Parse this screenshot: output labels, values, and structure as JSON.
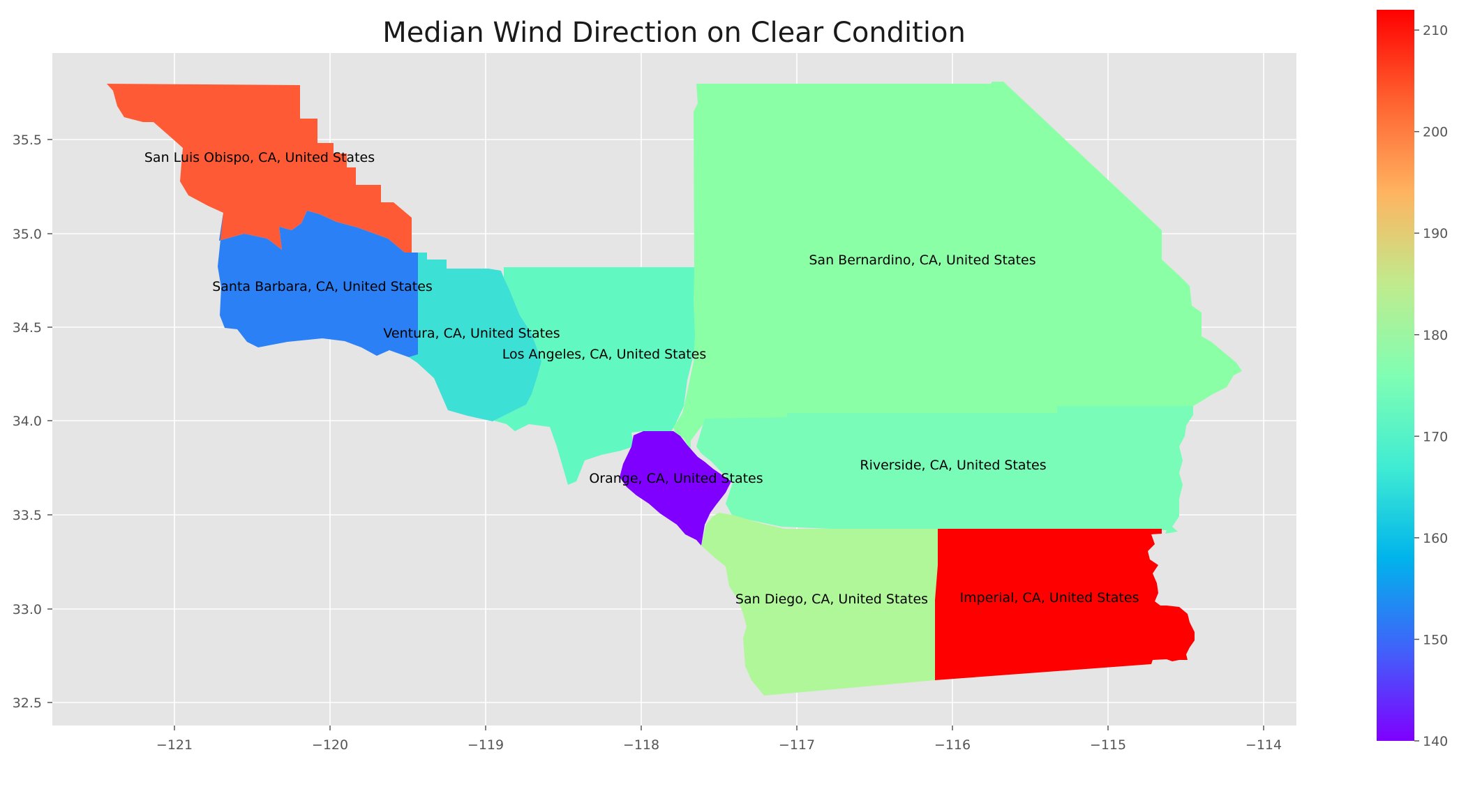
{
  "title": "Median Wind Direction on Clear Condition",
  "map": {
    "x_ticks": [
      "−121",
      "−120",
      "−119",
      "−118",
      "−117",
      "−116",
      "−115",
      "−114"
    ],
    "y_ticks": [
      "32.5",
      "33.0",
      "33.5",
      "34.0",
      "34.5",
      "35.0",
      "35.5"
    ],
    "grid": true,
    "background": "#e5e5e5"
  },
  "regions": [
    {
      "label": "San Luis Obispo, CA, United States",
      "value": 204,
      "color": "#ff5a36"
    },
    {
      "label": "Santa Barbara, CA, United States",
      "value": 150,
      "color": "#2a80f4"
    },
    {
      "label": "Ventura, CA, United States",
      "value": 168,
      "color": "#3ce0d4"
    },
    {
      "label": "Los Angeles, CA, United States",
      "value": 173,
      "color": "#61f8c2"
    },
    {
      "label": "San Bernardino, CA, United States",
      "value": 179,
      "color": "#8bffa6"
    },
    {
      "label": "Riverside, CA, United States",
      "value": 175,
      "color": "#79fcb8"
    },
    {
      "label": "Orange, CA, United States",
      "value": 140,
      "color": "#7f00ff"
    },
    {
      "label": "San Diego, CA, United States",
      "value": 184,
      "color": "#aff799"
    },
    {
      "label": "Imperial, CA, United States",
      "value": 212,
      "color": "#ff0000"
    }
  ],
  "colorbar": {
    "colormap": "rainbow",
    "min": 140,
    "max": 212,
    "ticks": [
      "140",
      "150",
      "160",
      "170",
      "180",
      "190",
      "200",
      "210"
    ]
  }
}
